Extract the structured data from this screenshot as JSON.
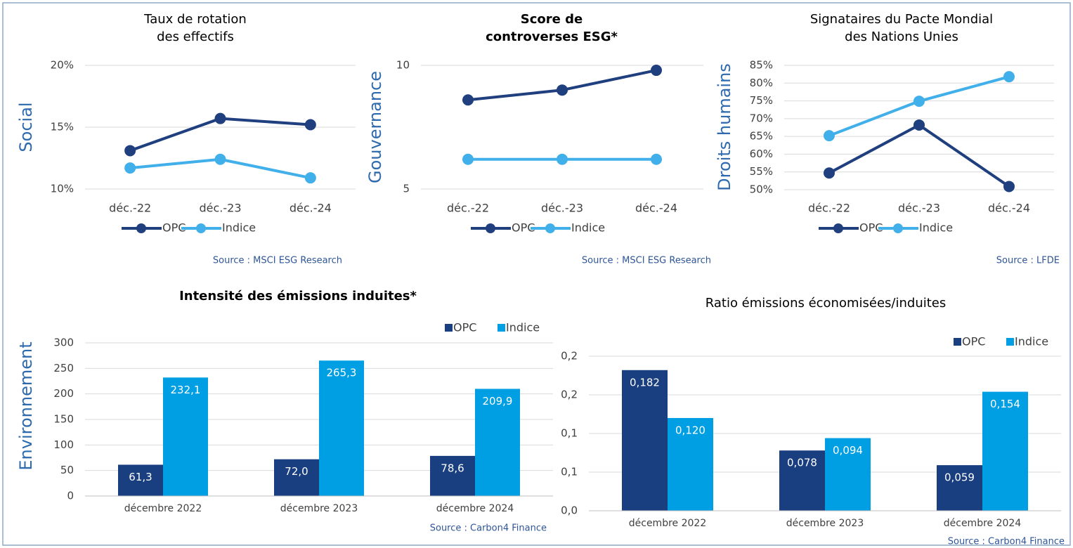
{
  "chart_data": [
    {
      "type": "line",
      "title": [
        "Taux de rotation",
        "des effectifs"
      ],
      "title_bold": false,
      "y_label": "Social",
      "categories": [
        "déc.-22",
        "déc.-23",
        "déc.-24"
      ],
      "series": [
        {
          "name": "OPC",
          "color": "#1f3f7f",
          "values": [
            13.1,
            15.7,
            15.2
          ]
        },
        {
          "name": "Indice",
          "color": "#41b0ea",
          "values": [
            11.7,
            12.4,
            10.9
          ]
        }
      ],
      "ylim": [
        10,
        20
      ],
      "yticks": [
        {
          "value": 10,
          "label": "10%"
        },
        {
          "value": 15,
          "label": "15%"
        },
        {
          "value": 20,
          "label": "20%"
        }
      ],
      "grid": true,
      "source": "Source : MSCI ESG Research"
    },
    {
      "type": "line",
      "title": [
        "Score de",
        "controverses ESG*"
      ],
      "title_bold": true,
      "y_label": "Gouvernance",
      "categories": [
        "déc.-22",
        "déc.-23",
        "déc.-24"
      ],
      "series": [
        {
          "name": "OPC",
          "color": "#1f3f7f",
          "values": [
            8.6,
            9.0,
            9.8
          ]
        },
        {
          "name": "Indice",
          "color": "#41b0ea",
          "values": [
            6.2,
            6.2,
            6.2
          ]
        }
      ],
      "ylim": [
        5,
        10
      ],
      "yticks": [
        5,
        10
      ],
      "grid": true,
      "source": "Source : MSCI ESG Research"
    },
    {
      "type": "line",
      "title": [
        "Signataires du Pacte Mondial",
        "des Nations Unies"
      ],
      "title_bold": false,
      "y_label": "Droits humains",
      "categories": [
        "déc.-22",
        "déc.-23",
        "déc.-24"
      ],
      "series": [
        {
          "name": "OPC",
          "color": "#1f3f7f",
          "values": [
            54.7,
            68.2,
            50.9
          ]
        },
        {
          "name": "Indice",
          "color": "#41b0ea",
          "values": [
            65.2,
            74.9,
            81.8
          ]
        }
      ],
      "ylim": [
        50,
        85
      ],
      "yticks": [
        {
          "value": 50,
          "label": "50%"
        },
        {
          "value": 55,
          "label": "55%"
        },
        {
          "value": 60,
          "label": "60%"
        },
        {
          "value": 65,
          "label": "65%"
        },
        {
          "value": 70,
          "label": "70%"
        },
        {
          "value": 75,
          "label": "75%"
        },
        {
          "value": 80,
          "label": "80%"
        },
        {
          "value": 85,
          "label": "85%"
        }
      ],
      "grid": true,
      "source": "Source : LFDE"
    },
    {
      "type": "bar",
      "title": [
        "Intensité des émissions induites*"
      ],
      "title_bold": true,
      "y_label": "Environnement",
      "categories": [
        "décembre 2022",
        "décembre 2023",
        "décembre 2024"
      ],
      "series": [
        {
          "name": "OPC",
          "color": "#1a3f80",
          "values": [
            61.3,
            72.0,
            78.6
          ],
          "value_labels": [
            "61,3",
            "72,0",
            "78,6"
          ]
        },
        {
          "name": "Indice",
          "color": "#009fe3",
          "values": [
            232.1,
            265.3,
            209.9
          ],
          "value_labels": [
            "232,1",
            "265,3",
            "209,9"
          ]
        }
      ],
      "ylim": [
        0,
        300
      ],
      "yticks": [
        0,
        50,
        100,
        150,
        200,
        250,
        300
      ],
      "grid": true,
      "source": "Source : Carbon4 Finance"
    },
    {
      "type": "bar",
      "title": [
        "Ratio émissions économisées/induites"
      ],
      "title_bold": false,
      "categories": [
        "décembre 2022",
        "décembre 2023",
        "décembre 2024"
      ],
      "series": [
        {
          "name": "OPC",
          "color": "#1a3f80",
          "values": [
            0.182,
            0.078,
            0.059
          ],
          "value_labels": [
            "0,182",
            "0,078",
            "0,059"
          ]
        },
        {
          "name": "Indice",
          "color": "#009fe3",
          "values": [
            0.12,
            0.094,
            0.154
          ],
          "value_labels": [
            "0,120",
            "0,094",
            "0,154"
          ]
        }
      ],
      "ylim": [
        0,
        0.2
      ],
      "yticks": [
        {
          "value": 0,
          "label": "0,0"
        },
        {
          "value": 0.05,
          "label": "0,1"
        },
        {
          "value": 0.1,
          "label": "0,1"
        },
        {
          "value": 0.15,
          "label": "0,2"
        },
        {
          "value": 0.2,
          "label": "0,2"
        }
      ],
      "grid": true,
      "source": "Source : Carbon4 Finance"
    }
  ]
}
